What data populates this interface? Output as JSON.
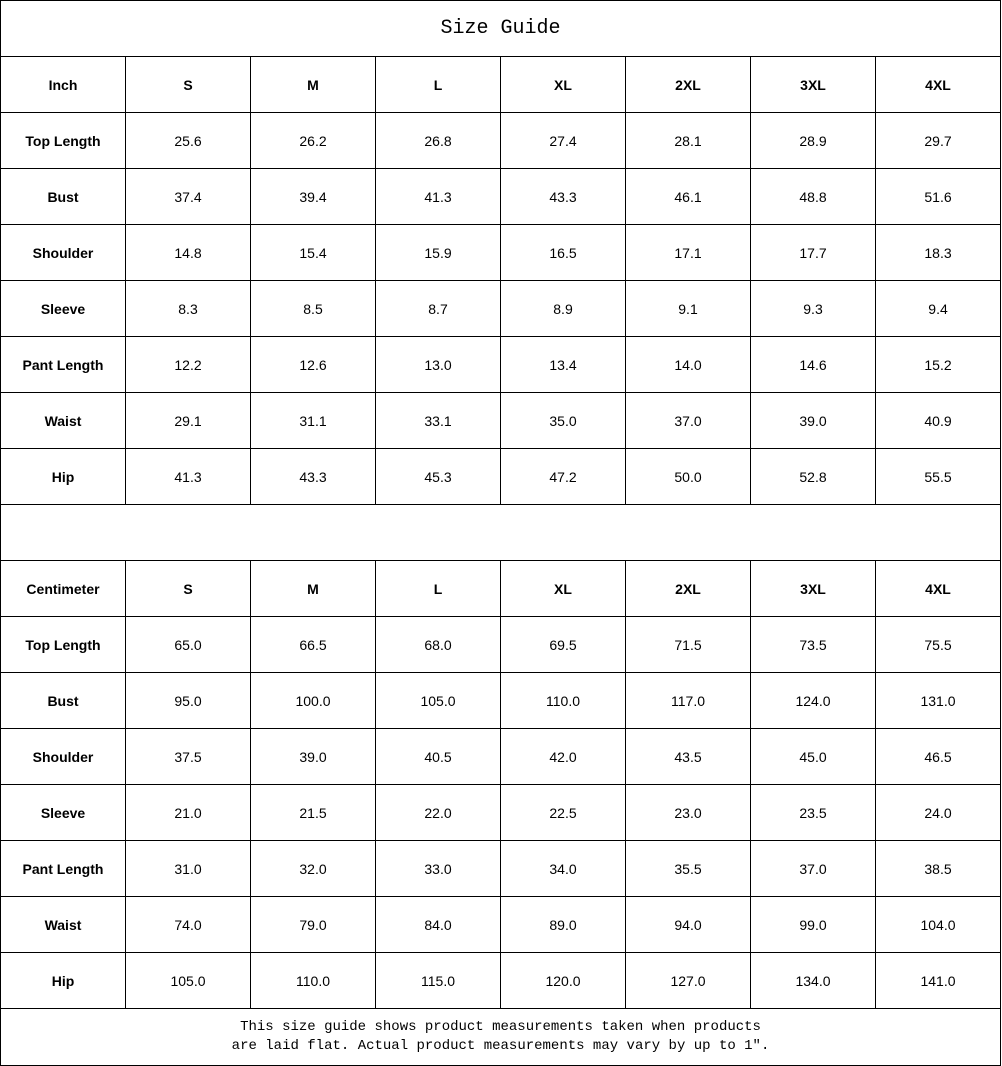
{
  "title": "Size Guide",
  "sizes": [
    "S",
    "M",
    "L",
    "XL",
    "2XL",
    "3XL",
    "4XL"
  ],
  "inch": {
    "unit_label": "Inch",
    "rows": [
      {
        "label": "Top Length",
        "values": [
          "25.6",
          "26.2",
          "26.8",
          "27.4",
          "28.1",
          "28.9",
          "29.7"
        ]
      },
      {
        "label": "Bust",
        "values": [
          "37.4",
          "39.4",
          "41.3",
          "43.3",
          "46.1",
          "48.8",
          "51.6"
        ]
      },
      {
        "label": "Shoulder",
        "values": [
          "14.8",
          "15.4",
          "15.9",
          "16.5",
          "17.1",
          "17.7",
          "18.3"
        ]
      },
      {
        "label": "Sleeve",
        "values": [
          "8.3",
          "8.5",
          "8.7",
          "8.9",
          "9.1",
          "9.3",
          "9.4"
        ]
      },
      {
        "label": "Pant Length",
        "values": [
          "12.2",
          "12.6",
          "13.0",
          "13.4",
          "14.0",
          "14.6",
          "15.2"
        ]
      },
      {
        "label": "Waist",
        "values": [
          "29.1",
          "31.1",
          "33.1",
          "35.0",
          "37.0",
          "39.0",
          "40.9"
        ]
      },
      {
        "label": "Hip",
        "values": [
          "41.3",
          "43.3",
          "45.3",
          "47.2",
          "50.0",
          "52.8",
          "55.5"
        ]
      }
    ]
  },
  "centimeter": {
    "unit_label": "Centimeter",
    "rows": [
      {
        "label": "Top Length",
        "values": [
          "65.0",
          "66.5",
          "68.0",
          "69.5",
          "71.5",
          "73.5",
          "75.5"
        ]
      },
      {
        "label": "Bust",
        "values": [
          "95.0",
          "100.0",
          "105.0",
          "110.0",
          "117.0",
          "124.0",
          "131.0"
        ]
      },
      {
        "label": "Shoulder",
        "values": [
          "37.5",
          "39.0",
          "40.5",
          "42.0",
          "43.5",
          "45.0",
          "46.5"
        ]
      },
      {
        "label": "Sleeve",
        "values": [
          "21.0",
          "21.5",
          "22.0",
          "22.5",
          "23.0",
          "23.5",
          "24.0"
        ]
      },
      {
        "label": "Pant Length",
        "values": [
          "31.0",
          "32.0",
          "33.0",
          "34.0",
          "35.5",
          "37.0",
          "38.5"
        ]
      },
      {
        "label": "Waist",
        "values": [
          "74.0",
          "79.0",
          "84.0",
          "89.0",
          "94.0",
          "99.0",
          "104.0"
        ]
      },
      {
        "label": "Hip",
        "values": [
          "105.0",
          "110.0",
          "115.0",
          "120.0",
          "127.0",
          "134.0",
          "141.0"
        ]
      }
    ]
  },
  "footer": {
    "line1": "This size guide shows product measurements taken when products",
    "line2": "are laid flat. Actual product measurements may vary by up to 1″."
  }
}
